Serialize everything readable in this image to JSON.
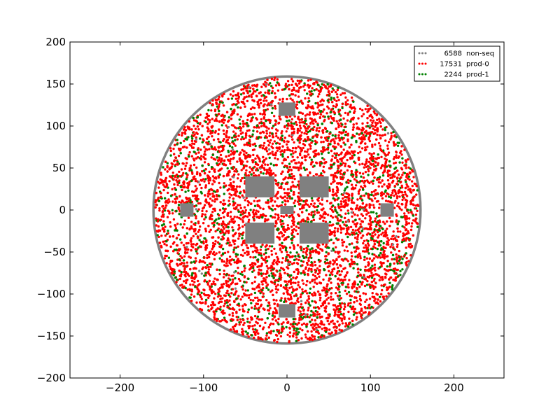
{
  "chart_data": {
    "type": "scatter",
    "title": "",
    "xlabel": "",
    "ylabel": "",
    "xlim": [
      -260,
      260
    ],
    "ylim": [
      -200,
      200
    ],
    "grid": false,
    "xticks": [
      -200,
      -100,
      0,
      100,
      200
    ],
    "yticks": [
      -200,
      -150,
      -100,
      -50,
      0,
      50,
      100,
      150,
      200
    ],
    "tick_labels": {
      "x": [
        "−200",
        "−100",
        "0",
        "100",
        "200"
      ],
      "y": [
        "−200",
        "−150",
        "−100",
        "−50",
        "0",
        "50",
        "100",
        "150",
        "200"
      ]
    },
    "legend": {
      "position": "top-right",
      "entries": [
        {
          "count": "6588",
          "name": "non-seq",
          "color": "#808080"
        },
        {
          "count": "17531",
          "name": "prod-0",
          "color": "#ff0000"
        },
        {
          "count": "2244",
          "name": "prod-1",
          "color": "#008000"
        }
      ]
    },
    "series": [
      {
        "name": "non-seq",
        "color": "#808080",
        "count": 6588,
        "points_drawn": "boundary ring and rectangular blocks",
        "wafer_radius": 160,
        "blocks": [
          {
            "x": [
              -10,
              10
            ],
            "y": [
              112,
              128
            ]
          },
          {
            "x": [
              -50,
              -15
            ],
            "y": [
              15,
              40
            ]
          },
          {
            "x": [
              15,
              50
            ],
            "y": [
              15,
              40
            ]
          },
          {
            "x": [
              -50,
              -15
            ],
            "y": [
              -40,
              -15
            ]
          },
          {
            "x": [
              15,
              50
            ],
            "y": [
              -40,
              -15
            ]
          },
          {
            "x": [
              -8,
              8
            ],
            "y": [
              -5,
              5
            ]
          },
          {
            "x": [
              -128,
              -112
            ],
            "y": [
              -8,
              8
            ]
          },
          {
            "x": [
              112,
              128
            ],
            "y": [
              -8,
              8
            ]
          },
          {
            "x": [
              -10,
              10
            ],
            "y": [
              -128,
              -112
            ]
          }
        ]
      },
      {
        "name": "prod-0",
        "color": "#ff0000",
        "count": 17531
      },
      {
        "name": "prod-1",
        "color": "#008000",
        "count": 2244
      }
    ]
  }
}
